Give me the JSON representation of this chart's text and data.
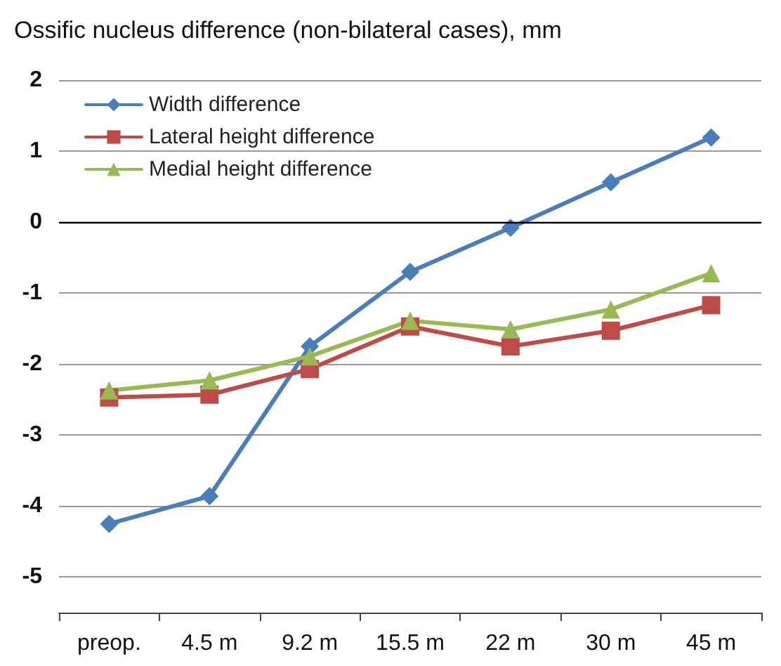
{
  "chart_data": {
    "type": "line",
    "title": "Ossific nucleus difference (non-bilateral cases), mm",
    "categories": [
      "preop.",
      "4.5 m",
      "9.2 m",
      "15.5 m",
      "22 m",
      "30 m",
      "45 m"
    ],
    "series": [
      {
        "name": "Width difference",
        "color": "#4a7ebb",
        "marker": "diamond",
        "values": [
          -4.25,
          -3.86,
          -1.75,
          -0.7,
          -0.08,
          0.56,
          1.19
        ]
      },
      {
        "name": "Lateral height difference",
        "color": "#be4b48",
        "marker": "square",
        "values": [
          -2.47,
          -2.43,
          -2.07,
          -1.47,
          -1.75,
          -1.53,
          -1.17
        ]
      },
      {
        "name": "Medial height difference",
        "color": "#98b954",
        "marker": "triangle",
        "values": [
          -2.37,
          -2.23,
          -1.89,
          -1.39,
          -1.51,
          -1.23,
          -0.72
        ]
      }
    ],
    "ylim": [
      -5.5,
      2
    ],
    "yticks": [
      -5,
      -4,
      -3,
      -2,
      -1,
      0,
      1,
      2
    ],
    "ref_lines": [
      {
        "axis": "y",
        "value": 0,
        "color": "#000000"
      }
    ],
    "grid": "y",
    "legend": "top left"
  }
}
